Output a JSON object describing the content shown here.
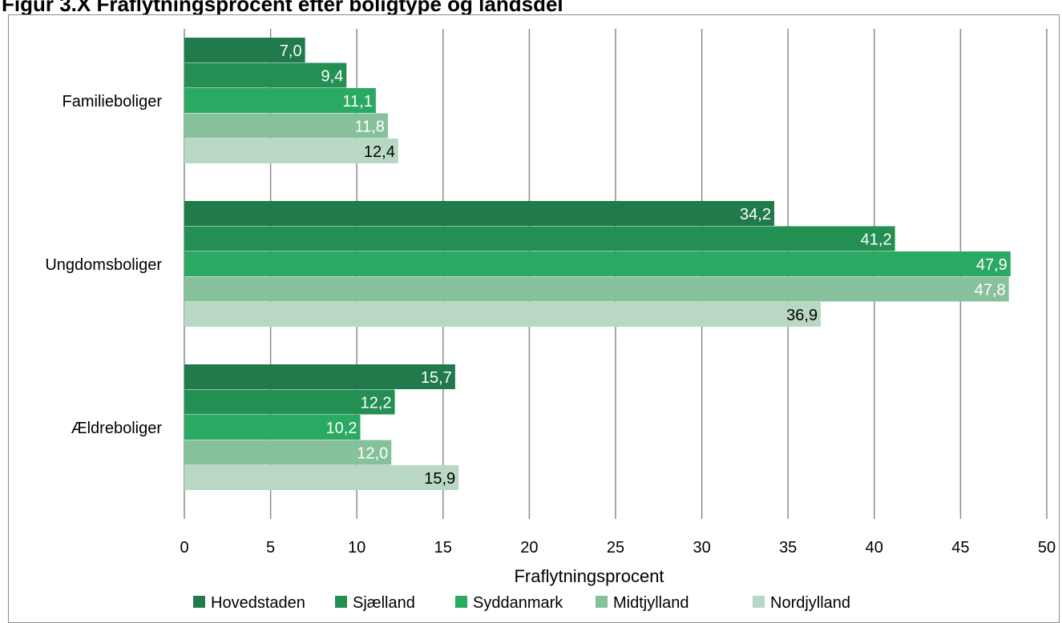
{
  "chart_data": {
    "type": "bar",
    "orientation": "horizontal",
    "title": "Figur 3.X Fraflytningsprocent efter boligtype og landsdel",
    "xlabel": "Fraflytningsprocent",
    "ylabel": "",
    "xlim": [
      0,
      50
    ],
    "x_ticks": [
      "0",
      "5",
      "10",
      "15",
      "20",
      "25",
      "30",
      "35",
      "40",
      "45",
      "50"
    ],
    "grid": true,
    "legend_position": "bottom",
    "categories": [
      "Familieboliger",
      "Ungdomsboliger",
      "Ældreboliger"
    ],
    "series": [
      {
        "name": "Hovedstaden",
        "color": "#217a4b",
        "label_color": "#ffffff",
        "values": [
          7.0,
          34.2,
          15.7
        ],
        "labels": [
          "7,0",
          "34,2",
          "15,7"
        ]
      },
      {
        "name": "Sjælland",
        "color": "#238f53",
        "label_color": "#ffffff",
        "values": [
          9.4,
          41.2,
          12.2
        ],
        "labels": [
          "9,4",
          "41,2",
          "12,2"
        ]
      },
      {
        "name": "Syddanmark",
        "color": "#2aa962",
        "label_color": "#ffffff",
        "values": [
          11.1,
          47.9,
          10.2
        ],
        "labels": [
          "11,1",
          "47,9",
          "10,2"
        ]
      },
      {
        "name": "Midtjylland",
        "color": "#87c19c",
        "label_color": "#ffffff",
        "values": [
          11.8,
          47.8,
          12.0
        ],
        "labels": [
          "11,8",
          "47,8",
          "12,0"
        ]
      },
      {
        "name": "Nordjylland",
        "color": "#b8d8c4",
        "label_color": "#000000",
        "values": [
          12.4,
          36.9,
          15.9
        ],
        "labels": [
          "12,4",
          "36,9",
          "15,9"
        ]
      }
    ]
  }
}
